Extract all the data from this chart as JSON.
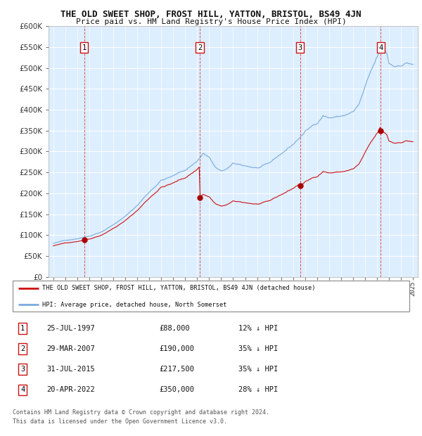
{
  "title": "THE OLD SWEET SHOP, FROST HILL, YATTON, BRISTOL, BS49 4JN",
  "subtitle": "Price paid vs. HM Land Registry's House Price Index (HPI)",
  "bg_color": "#ddeeff",
  "hpi_color": "#7aaadd",
  "price_color": "#cc1111",
  "marker_color": "#aa0000",
  "purchases": [
    {
      "label": "1",
      "date_x": 1997.57,
      "price": 88000,
      "text": "25-JUL-1997",
      "amount": "£88,000",
      "pct": "12% ↓ HPI"
    },
    {
      "label": "2",
      "date_x": 2007.22,
      "price": 190000,
      "text": "29-MAR-2007",
      "amount": "£190,000",
      "pct": "35% ↓ HPI"
    },
    {
      "label": "3",
      "date_x": 2015.58,
      "price": 217500,
      "text": "31-JUL-2015",
      "amount": "£217,500",
      "pct": "35% ↓ HPI"
    },
    {
      "label": "4",
      "date_x": 2022.31,
      "price": 350000,
      "text": "20-APR-2022",
      "amount": "£350,000",
      "pct": "28% ↓ HPI"
    }
  ],
  "legend_line1": "THE OLD SWEET SHOP, FROST HILL, YATTON, BRISTOL, BS49 4JN (detached house)",
  "legend_line2": "HPI: Average price, detached house, North Somerset",
  "footer1": "Contains HM Land Registry data © Crown copyright and database right 2024.",
  "footer2": "This data is licensed under the Open Government Licence v3.0.",
  "ylim": [
    0,
    600000
  ],
  "yticks": [
    0,
    50000,
    100000,
    150000,
    200000,
    250000,
    300000,
    350000,
    400000,
    450000,
    500000,
    550000,
    600000
  ],
  "xlim_start": 1994.6,
  "xlim_end": 2025.4
}
